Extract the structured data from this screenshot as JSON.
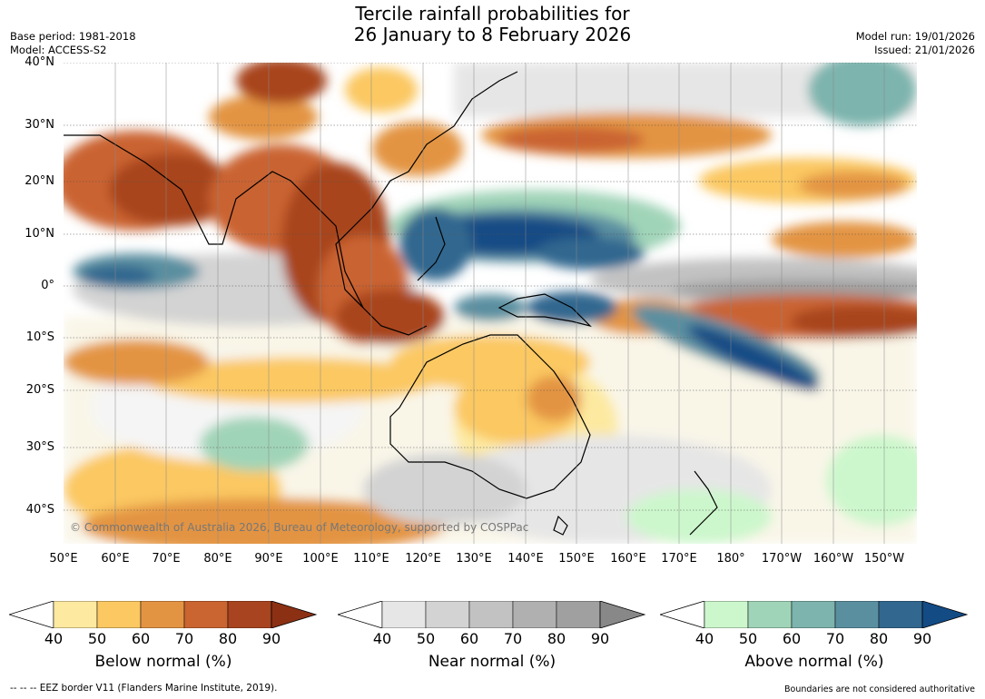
{
  "header": {
    "title_line1": "Tercile rainfall probabilities for",
    "title_line2": "26 January to 8 February 2026",
    "base_period": "Base period: 1981-2018",
    "model": "Model: ACCESS-S2",
    "model_run": "Model run: 19/01/2026",
    "issued": "Issued: 21/01/2026"
  },
  "map": {
    "lat_labels": [
      "40°N",
      "30°N",
      "20°N",
      "10°N",
      "0°",
      "10°S",
      "20°S",
      "30°S",
      "40°S"
    ],
    "lon_labels": [
      "50°E",
      "60°E",
      "70°E",
      "80°E",
      "90°E",
      "100°E",
      "110°E",
      "120°E",
      "130°E",
      "140°E",
      "150°E",
      "160°E",
      "170°E",
      "180°",
      "170°W",
      "160°W",
      "150°W"
    ],
    "copyright": "© Commonwealth of Australia 2026, Bureau of Meteorology, supported by COSPPac"
  },
  "legends": [
    {
      "title": "Below normal (%)",
      "ticks": [
        "40",
        "50",
        "60",
        "70",
        "80",
        "90"
      ],
      "colors": [
        "#ffffff",
        "#fde9a0",
        "#fbc862",
        "#e39443",
        "#ca6430",
        "#a8441f",
        "#8c3014"
      ]
    },
    {
      "title": "Near normal (%)",
      "ticks": [
        "40",
        "50",
        "60",
        "70",
        "80",
        "90"
      ],
      "colors": [
        "#ffffff",
        "#e6e6e6",
        "#d3d3d3",
        "#c2c2c2",
        "#b0b0b0",
        "#a0a0a0",
        "#888888"
      ]
    },
    {
      "title": "Above normal (%)",
      "ticks": [
        "40",
        "50",
        "60",
        "70",
        "80",
        "90"
      ],
      "colors": [
        "#ffffff",
        "#ccf7cc",
        "#a0d4b8",
        "#7db4ad",
        "#5a8fa0",
        "#32678f",
        "#134b85"
      ]
    }
  ],
  "footer": {
    "eez": "--  --  -- EEZ border V11 (Flanders Marine Institute, 2019).",
    "disclaimer": "Boundaries are not considered authoritative"
  }
}
